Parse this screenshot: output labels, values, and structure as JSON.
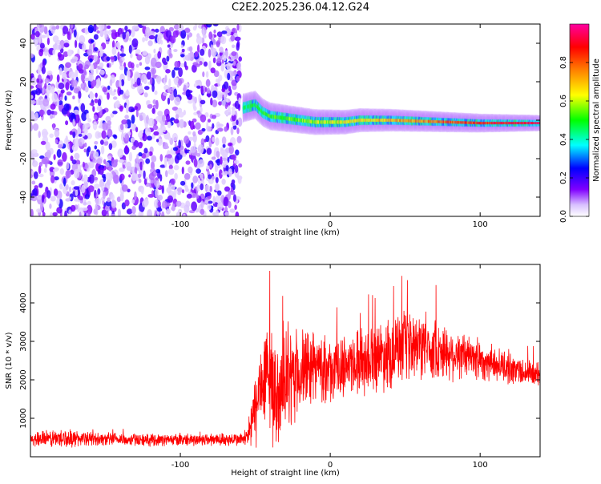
{
  "title": "C2E2.2025.236.04.12.G24",
  "chart_data": [
    {
      "type": "heatmap",
      "xlabel": "Height of straight line (km)",
      "ylabel": "Frequency (Hz)",
      "xlim": [
        -200,
        140
      ],
      "ylim": [
        -50,
        50
      ],
      "xticks": [
        -100,
        0,
        100
      ],
      "yticks": [
        -40,
        -20,
        0,
        20,
        40
      ],
      "noise_region_x": [
        -200,
        -60
      ],
      "ridge": {
        "description_points_x": [
          -60,
          -55,
          -50,
          -45,
          -40,
          -35,
          -30,
          -25,
          -20,
          -15,
          -10,
          -5,
          0,
          10,
          20,
          40,
          60,
          80,
          100,
          120,
          140
        ],
        "frequency_hz": [
          6,
          7,
          8,
          4,
          2,
          1.5,
          1,
          0.5,
          0,
          -0.5,
          -1,
          -1,
          -1,
          -1,
          0,
          0,
          -0.5,
          -1,
          -1.5,
          -1.5,
          -1.5
        ]
      },
      "colorbar": {
        "label": "Normalized spectral amplitude",
        "ticks": [
          0.0,
          0.2,
          0.4,
          0.6,
          0.8
        ],
        "range": [
          0,
          1
        ],
        "colors": [
          "#ffffff",
          "#8000ff",
          "#0000ff",
          "#00ffff",
          "#00ff00",
          "#ffff00",
          "#ff8000",
          "#ff0000",
          "#ff00a0"
        ]
      },
      "grid": false
    },
    {
      "type": "line",
      "xlabel": "Height of straight line (km)",
      "ylabel": "SNR (10 * v/v)",
      "xlim": [
        -200,
        140
      ],
      "ylim": [
        0,
        5000
      ],
      "xticks": [
        -100,
        0,
        100
      ],
      "yticks": [
        1000,
        2000,
        3000,
        4000
      ],
      "grid": false,
      "series": [
        {
          "color": "#ff0000",
          "envelope_x": [
            -200,
            -180,
            -160,
            -140,
            -120,
            -100,
            -80,
            -60,
            -55,
            -50,
            -45,
            -40,
            -35,
            -30,
            -25,
            -20,
            -15,
            -10,
            -5,
            0,
            10,
            20,
            30,
            40,
            50,
            60,
            70,
            80,
            90,
            100,
            110,
            120,
            130,
            140
          ],
          "envelope_mean": [
            450,
            480,
            470,
            450,
            440,
            440,
            450,
            450,
            500,
            1200,
            2000,
            2100,
            1500,
            1800,
            2000,
            2200,
            2300,
            2400,
            2300,
            2200,
            2400,
            2500,
            2600,
            2700,
            2800,
            2900,
            2800,
            2700,
            2600,
            2500,
            2400,
            2300,
            2200,
            2100
          ],
          "envelope_amp": [
            200,
            300,
            200,
            200,
            180,
            180,
            200,
            200,
            300,
            1200,
            1500,
            1800,
            1500,
            1500,
            1400,
            1300,
            1200,
            1000,
            1000,
            900,
            900,
            1000,
            1000,
            1100,
            1100,
            1000,
            900,
            800,
            700,
            600,
            500,
            500,
            400,
            400
          ]
        }
      ]
    }
  ]
}
